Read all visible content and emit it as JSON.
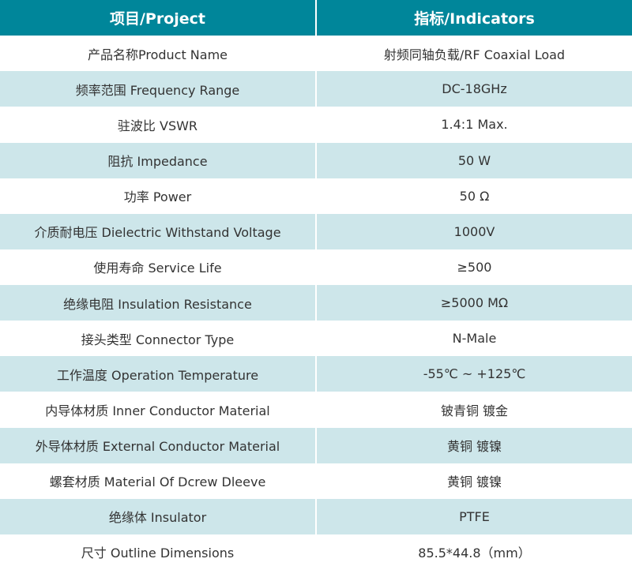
{
  "header": {
    "project": "项目/Project",
    "indicators": "指标/Indicators"
  },
  "colors": {
    "header_bg": "#00869a",
    "alt_row_bg": "#cde6ea",
    "row_bg": "#ffffff"
  },
  "rows": [
    {
      "label": "产品名称Product Name",
      "value": "射频同轴负载/RF Coaxial Load"
    },
    {
      "label": "频率范围 Frequency Range",
      "value": "DC-18GHz"
    },
    {
      "label": "驻波比 VSWR",
      "value": "1.4:1 Max."
    },
    {
      "label": "阻抗 Impedance",
      "value": "50 W"
    },
    {
      "label": "功率 Power",
      "value": "50 Ω"
    },
    {
      "label": "介质耐电压 Dielectric Withstand Voltage",
      "value": "1000V"
    },
    {
      "label": "使用寿命 Service Life",
      "value": "≥500"
    },
    {
      "label": "绝缘电阻 Insulation Resistance",
      "value": "≥5000 MΩ"
    },
    {
      "label": "接头类型 Connector Type",
      "value": "N-Male"
    },
    {
      "label": "工作温度 Operation Temperature",
      "value": "-55℃ ~ +125℃"
    },
    {
      "label": "内导体材质 Inner Conductor Material",
      "value": "铍青铜 镀金"
    },
    {
      "label": "外导体材质 External Conductor Material",
      "value": "黄铜 镀镍"
    },
    {
      "label": "螺套材质 Material Of Dcrew Dleeve",
      "value": "黄铜 镀镍"
    },
    {
      "label": "绝缘体 Insulator",
      "value": "PTFE"
    },
    {
      "label": "尺寸 Outline Dimensions",
      "value": "85.5*44.8（mm）"
    }
  ]
}
